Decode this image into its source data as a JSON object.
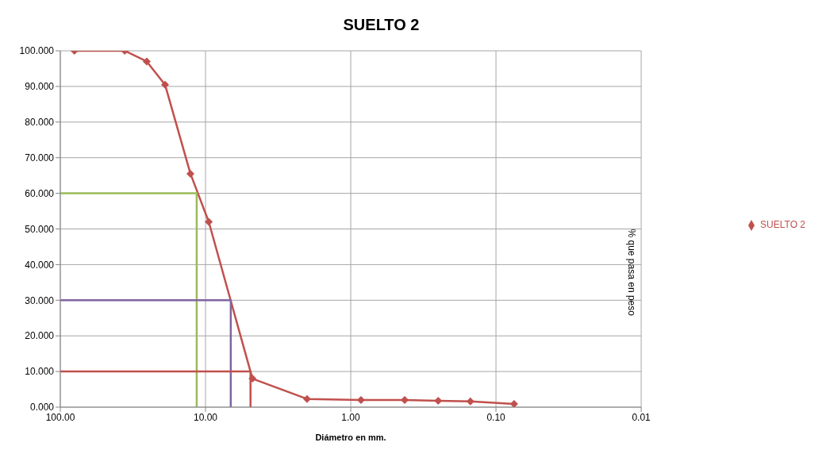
{
  "chart_data": {
    "type": "line",
    "title": "SUELTO 2",
    "xlabel": "Diámetro en mm.",
    "ylabel": "% que pasa en peso",
    "log": "x",
    "xlim": [
      100,
      0.01
    ],
    "xticks": [
      {
        "value": 100,
        "label": "100.00"
      },
      {
        "value": 10,
        "label": "10.00"
      },
      {
        "value": 1,
        "label": "1.00"
      },
      {
        "value": 0.1,
        "label": "0.10"
      },
      {
        "value": 0.01,
        "label": "0.01"
      }
    ],
    "ylim": [
      0,
      100
    ],
    "yticks": [
      {
        "value": 0,
        "label": "0.000"
      },
      {
        "value": 10,
        "label": "10.000"
      },
      {
        "value": 20,
        "label": "20.000"
      },
      {
        "value": 30,
        "label": "30.000"
      },
      {
        "value": 40,
        "label": "40.000"
      },
      {
        "value": 50,
        "label": "50.000"
      },
      {
        "value": 60,
        "label": "60.000"
      },
      {
        "value": 70,
        "label": "70.000"
      },
      {
        "value": 80,
        "label": "80.000"
      },
      {
        "value": 90,
        "label": "90.000"
      },
      {
        "value": 100,
        "label": "100.000"
      }
    ],
    "grid": true,
    "legend": "right",
    "marker": "diamond",
    "line_style": "solid",
    "series": [
      {
        "name": "SUELTO 2",
        "color": "#c0504d",
        "x": [
          80,
          36,
          25.4,
          19,
          12.7,
          9.5,
          4.75,
          2,
          0.85,
          0.425,
          0.25,
          0.15,
          0.075
        ],
        "values": [
          100,
          100,
          97,
          90.5,
          65.5,
          52,
          8,
          2.3,
          2,
          2,
          1.8,
          1.6,
          0.9
        ]
      },
      {
        "type": "line",
        "marker": "none",
        "color": "#9bbb59",
        "x": [
          100,
          11.5,
          11.5
        ],
        "values": [
          60,
          60,
          0
        ]
      },
      {
        "type": "line",
        "marker": "none",
        "color": "#8064a2",
        "x": [
          100,
          6.7,
          6.7
        ],
        "values": [
          30,
          30,
          0
        ]
      },
      {
        "type": "line",
        "marker": "none",
        "color": "#c0504d",
        "x": [
          100,
          4.9,
          4.9
        ],
        "values": [
          10,
          10,
          0
        ]
      }
    ]
  }
}
